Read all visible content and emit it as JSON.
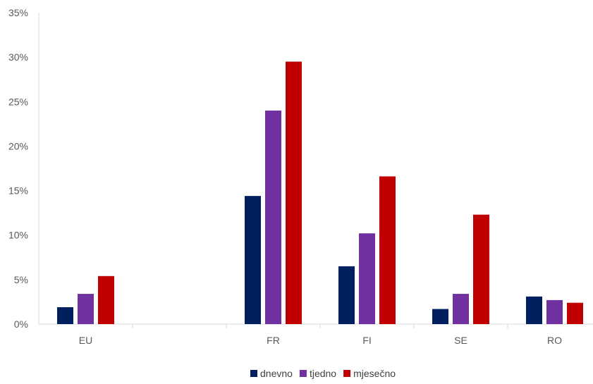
{
  "chart_data": {
    "type": "bar",
    "title": "",
    "xlabel": "",
    "ylabel": "",
    "categories": [
      "EU",
      "",
      "FR",
      "FI",
      "SE",
      "RO"
    ],
    "series": [
      {
        "name": "dnevno",
        "color": "#001f5e",
        "values": [
          1.9,
          null,
          14.4,
          6.5,
          1.7,
          3.1
        ]
      },
      {
        "name": "tjedno",
        "color": "#7030a0",
        "values": [
          3.4,
          null,
          24.0,
          10.2,
          3.4,
          2.7
        ]
      },
      {
        "name": "mjesečno",
        "color": "#c00000",
        "values": [
          5.4,
          null,
          29.5,
          16.6,
          12.3,
          2.4
        ]
      }
    ],
    "ylim": [
      0,
      35
    ],
    "yticks": [
      0,
      5,
      10,
      15,
      20,
      25,
      30,
      35
    ],
    "ytick_labels": [
      "0%",
      "5%",
      "10%",
      "15%",
      "20%",
      "25%",
      "30%",
      "35%"
    ],
    "grid": false,
    "legend_position": "bottom"
  }
}
